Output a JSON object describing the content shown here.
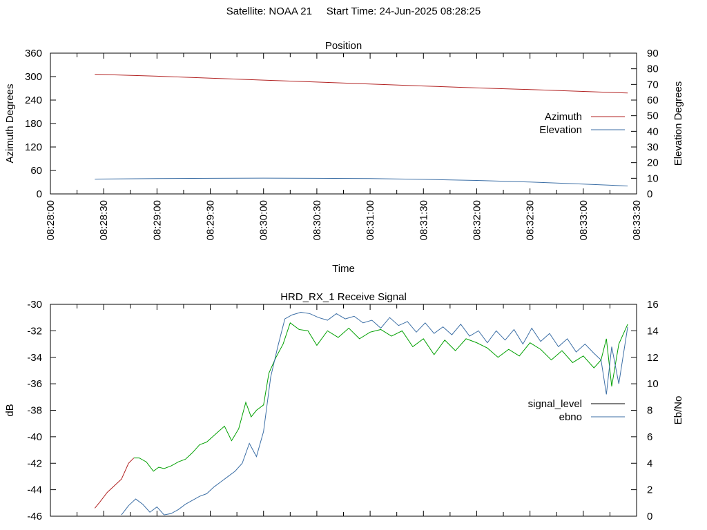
{
  "header": {
    "satellite_label": "Satellite: NOAA 21",
    "start_time_label": "Start Time: 24-Jun-2025 08:28:25"
  },
  "chart_data": [
    {
      "type": "line",
      "title": "Position",
      "xlabel": "Time",
      "ylabel": "Azimuth Degrees",
      "y2label": "Elevation Degrees",
      "x_ticks": [
        "08:28:00",
        "08:28:30",
        "08:29:00",
        "08:29:30",
        "08:30:00",
        "08:30:30",
        "08:31:00",
        "08:31:30",
        "08:32:00",
        "08:32:30",
        "08:33:00",
        "08:33:30"
      ],
      "xlim": [
        "08:28:00",
        "08:33:30"
      ],
      "ylim": [
        0,
        360
      ],
      "yticks": [
        0,
        60,
        120,
        180,
        240,
        300,
        360
      ],
      "y2lim": [
        0,
        90
      ],
      "y2ticks": [
        0,
        10,
        20,
        30,
        40,
        50,
        60,
        70,
        80,
        90
      ],
      "legend_placement": "right",
      "series": [
        {
          "name": "Azimuth",
          "axis": "left",
          "color": "#b22222",
          "x": [
            "08:28:25",
            "08:29:00",
            "08:29:30",
            "08:30:00",
            "08:30:30",
            "08:31:00",
            "08:31:30",
            "08:32:00",
            "08:32:30",
            "08:33:00",
            "08:33:25"
          ],
          "values": [
            306,
            301,
            296,
            291,
            286,
            281,
            276,
            271,
            267,
            262,
            258
          ]
        },
        {
          "name": "Elevation",
          "axis": "right",
          "color": "#3b6ea5",
          "x": [
            "08:28:25",
            "08:29:00",
            "08:29:30",
            "08:30:00",
            "08:30:30",
            "08:31:00",
            "08:31:30",
            "08:32:00",
            "08:32:30",
            "08:33:00",
            "08:33:25"
          ],
          "values": [
            9.5,
            9.8,
            10.0,
            10.1,
            10.0,
            9.8,
            9.3,
            8.6,
            7.6,
            6.3,
            5.1
          ]
        }
      ]
    },
    {
      "type": "line",
      "title": "HRD_RX_1 Receive Signal",
      "ylabel": "dB",
      "y2label": "Eb/No",
      "xlim": [
        "08:28:00",
        "08:33:30"
      ],
      "ylim": [
        -46,
        -30
      ],
      "yticks": [
        -46,
        -44,
        -42,
        -40,
        -38,
        -36,
        -34,
        -32,
        -30
      ],
      "y2lim": [
        0,
        16
      ],
      "y2ticks": [
        0,
        2,
        4,
        6,
        8,
        10,
        12,
        14,
        16
      ],
      "legend_placement": "right",
      "series": [
        {
          "name": "signal_level",
          "axis": "left",
          "color": "#000000",
          "segment_colors": [
            "#b22222",
            "#00a000"
          ],
          "x": [
            "08:28:25",
            "08:28:28",
            "08:28:32",
            "08:28:36",
            "08:28:40",
            "08:28:44",
            "08:28:47",
            "08:28:50",
            "08:28:54",
            "08:28:58",
            "08:29:01",
            "08:29:04",
            "08:29:08",
            "08:29:12",
            "08:29:16",
            "08:29:20",
            "08:29:24",
            "08:29:28",
            "08:29:33",
            "08:29:38",
            "08:29:42",
            "08:29:46",
            "08:29:50",
            "08:29:53",
            "08:29:56",
            "08:30:00",
            "08:30:03",
            "08:30:07",
            "08:30:11",
            "08:30:15",
            "08:30:20",
            "08:30:25",
            "08:30:30",
            "08:30:36",
            "08:30:42",
            "08:30:48",
            "08:30:54",
            "08:31:00",
            "08:31:06",
            "08:31:12",
            "08:31:18",
            "08:31:24",
            "08:31:30",
            "08:31:36",
            "08:31:42",
            "08:31:48",
            "08:31:54",
            "08:32:00",
            "08:32:06",
            "08:32:12",
            "08:32:18",
            "08:32:24",
            "08:32:30",
            "08:32:36",
            "08:32:42",
            "08:32:48",
            "08:32:54",
            "08:33:00",
            "08:33:06",
            "08:33:10",
            "08:33:13",
            "08:33:16",
            "08:33:20",
            "08:33:25"
          ],
          "values": [
            -45.4,
            -44.9,
            -44.2,
            -43.7,
            -43.2,
            -42.0,
            -41.6,
            -41.6,
            -41.9,
            -42.6,
            -42.3,
            -42.4,
            -42.2,
            -41.9,
            -41.7,
            -41.2,
            -40.6,
            -40.4,
            -39.8,
            -39.2,
            -40.3,
            -39.4,
            -37.4,
            -38.5,
            -38.0,
            -37.6,
            -35.2,
            -34.0,
            -33.0,
            -31.4,
            -31.9,
            -32.0,
            -33.1,
            -32.0,
            -32.5,
            -31.8,
            -32.6,
            -32.1,
            -31.9,
            -32.4,
            -32.0,
            -33.2,
            -32.6,
            -33.8,
            -32.7,
            -33.5,
            -32.6,
            -32.9,
            -33.3,
            -34.0,
            -33.4,
            -33.9,
            -32.9,
            -33.4,
            -34.2,
            -33.5,
            -34.4,
            -33.9,
            -34.8,
            -34.2,
            -32.6,
            -36.2,
            -33.0,
            -31.5
          ]
        },
        {
          "name": "ebno",
          "axis": "right",
          "color": "#3b6ea5",
          "x": [
            "08:28:40",
            "08:28:44",
            "08:28:48",
            "08:28:52",
            "08:28:56",
            "08:29:00",
            "08:29:04",
            "08:29:08",
            "08:29:12",
            "08:29:16",
            "08:29:20",
            "08:29:24",
            "08:29:28",
            "08:29:32",
            "08:29:36",
            "08:29:40",
            "08:29:44",
            "08:29:48",
            "08:29:52",
            "08:29:56",
            "08:30:00",
            "08:30:04",
            "08:30:08",
            "08:30:12",
            "08:30:16",
            "08:30:21",
            "08:30:26",
            "08:30:31",
            "08:30:36",
            "08:30:41",
            "08:30:46",
            "08:30:51",
            "08:30:56",
            "08:31:01",
            "08:31:06",
            "08:31:11",
            "08:31:16",
            "08:31:21",
            "08:31:26",
            "08:31:31",
            "08:31:36",
            "08:31:41",
            "08:31:46",
            "08:31:51",
            "08:31:56",
            "08:32:01",
            "08:32:06",
            "08:32:11",
            "08:32:16",
            "08:32:21",
            "08:32:26",
            "08:32:31",
            "08:32:36",
            "08:32:41",
            "08:32:46",
            "08:32:51",
            "08:32:56",
            "08:33:01",
            "08:33:06",
            "08:33:10",
            "08:33:13",
            "08:33:16",
            "08:33:20",
            "08:33:25"
          ],
          "values": [
            0.1,
            0.8,
            1.3,
            0.9,
            0.3,
            0.7,
            0.1,
            0.2,
            0.5,
            0.9,
            1.2,
            1.5,
            1.7,
            2.2,
            2.6,
            3.0,
            3.4,
            4.0,
            5.5,
            4.5,
            6.4,
            10.5,
            12.8,
            14.9,
            15.2,
            15.4,
            15.3,
            15.0,
            14.8,
            15.3,
            14.9,
            15.1,
            14.6,
            14.8,
            14.2,
            15.0,
            14.4,
            14.7,
            13.9,
            14.6,
            13.8,
            14.3,
            13.7,
            14.5,
            13.6,
            14.0,
            13.1,
            14.0,
            13.3,
            14.1,
            13.0,
            14.2,
            13.2,
            13.8,
            12.8,
            13.4,
            12.4,
            13.0,
            12.3,
            11.8,
            9.2,
            12.8,
            10.0,
            14.3
          ]
        }
      ]
    }
  ]
}
